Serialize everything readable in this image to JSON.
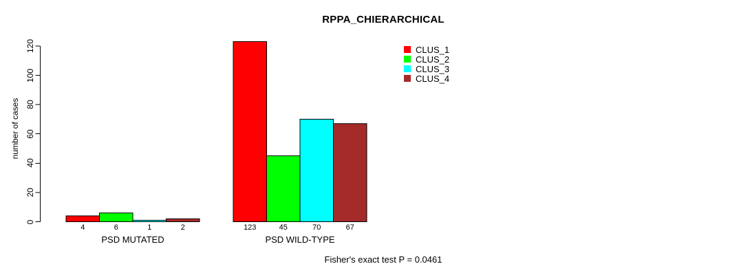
{
  "title": "RPPA_CHIERARCHICAL",
  "footer_note": "Fisher's exact test P = 0.0461",
  "y_axis": {
    "label": "number of cases",
    "ticks": [
      0,
      20,
      40,
      60,
      80,
      100,
      120
    ]
  },
  "chart_data": {
    "type": "bar",
    "title": "RPPA_CHIERARCHICAL",
    "categories": [
      "PSD MUTATED",
      "PSD WILD-TYPE"
    ],
    "series": [
      {
        "name": "CLUS_1",
        "color": "#FF0000",
        "values": [
          4,
          123
        ]
      },
      {
        "name": "CLUS_2",
        "color": "#00FF00",
        "values": [
          6,
          45
        ]
      },
      {
        "name": "CLUS_3",
        "color": "#00FFFF",
        "values": [
          1,
          70
        ]
      },
      {
        "name": "CLUS_4",
        "color": "#A52A2A",
        "values": [
          2,
          67
        ]
      }
    ],
    "xlabel": "",
    "ylabel": "number of cases",
    "ylim": [
      0,
      120
    ],
    "grid": false,
    "legend_position": "top-right",
    "bar_value_labels": true,
    "annotation": "Fisher's exact test P = 0.0461"
  }
}
